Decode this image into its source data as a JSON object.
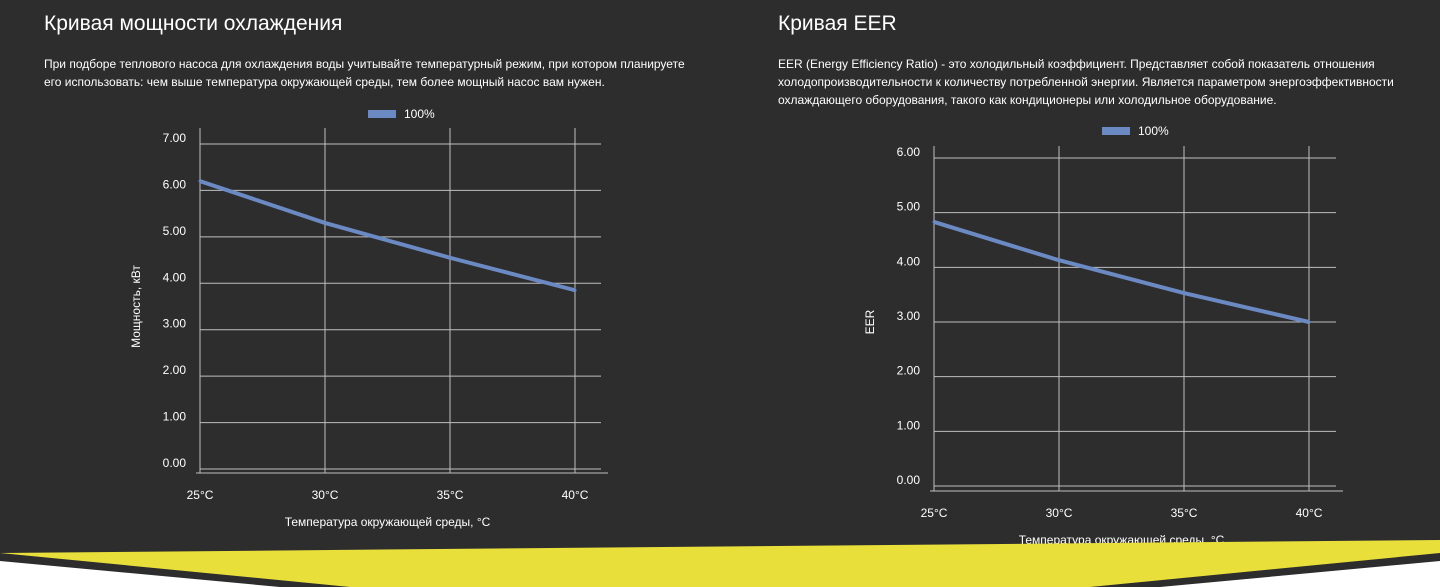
{
  "cooling": {
    "title": "Кривая мощности охлаждения",
    "description_lines": [
      "При подборе теплового насоса для охлаждения воды учитывайте температурный режим, при котором планируете",
      "его использовать: чем выше температура окружающей среды, тем более мощный насос вам нужен."
    ]
  },
  "eer": {
    "title": "Кривая EER",
    "description_lines": [
      "EER (Energy Efficiency Ratio) - это холодильный коэффициент. Представляет собой показатель отношения",
      "холодопроизводительности к количеству потребленной энергии. Является параметром энергоэффективности",
      "охлаждающего оборудования, такого как кондиционеры или холодильное оборудование."
    ]
  },
  "colors": {
    "background": "#2e2d2e",
    "series": "#6b8ac4",
    "grid": "#bfbfbf",
    "text": "#ffffff",
    "accent": "#e8df3a",
    "footer": "#ffffff"
  },
  "chart_data": [
    {
      "type": "line",
      "categories": [
        "25°C",
        "30°C",
        "35°C",
        "40°C"
      ],
      "series": [
        {
          "name": "100%",
          "values": [
            6.2,
            5.3,
            4.55,
            3.85
          ]
        }
      ],
      "xlabel": "Температура окружающей среды, °C",
      "ylabel": "Мощность, кВт",
      "yticks": [
        "0.00",
        "1.00",
        "2.00",
        "3.00",
        "4.00",
        "5.00",
        "6.00",
        "7.00"
      ],
      "ylim": [
        0,
        7
      ],
      "grid": true,
      "legend": "top-center"
    },
    {
      "type": "line",
      "categories": [
        "25°C",
        "30°C",
        "35°C",
        "40°C"
      ],
      "series": [
        {
          "name": "100%",
          "values": [
            4.83,
            4.13,
            3.53,
            3.0
          ]
        }
      ],
      "xlabel": "Температура окружающей среды, °C",
      "ylabel": "EER",
      "yticks": [
        "0.00",
        "1.00",
        "2.00",
        "3.00",
        "4.00",
        "5.00",
        "6.00"
      ],
      "ylim": [
        0,
        6
      ],
      "grid": true,
      "legend": "top-center"
    }
  ]
}
